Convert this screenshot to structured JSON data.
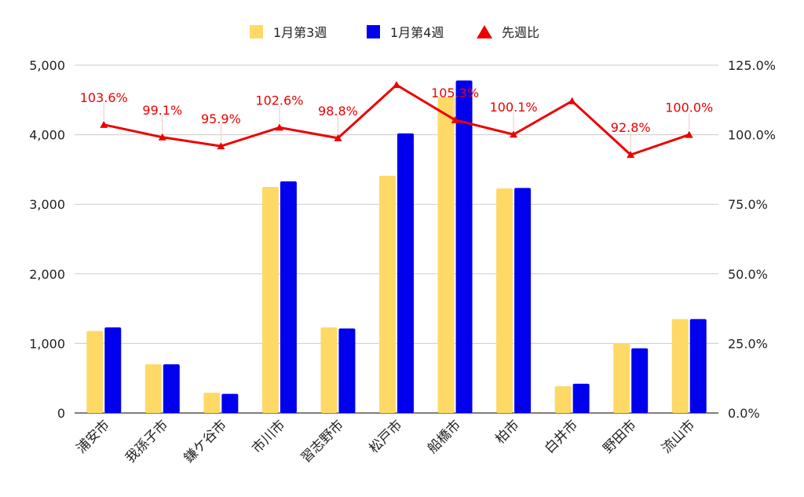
{
  "chart_data": {
    "type": "bar",
    "categories": [
      "浦安市",
      "我孫子市",
      "鎌ケ谷市",
      "市川市",
      "習志野市",
      "松戸市",
      "船橋市",
      "柏市",
      "白井市",
      "野田市",
      "流山市"
    ],
    "series": [
      {
        "name": "1月第3週",
        "type": "bar",
        "axis": "left",
        "color": "#FFD966",
        "values": [
          1180,
          700,
          290,
          3250,
          1230,
          3410,
          4540,
          3230,
          385,
          1005,
          1350
        ]
      },
      {
        "name": "1月第4週",
        "type": "bar",
        "axis": "left",
        "color": "#0000EE",
        "values": [
          1230,
          700,
          275,
          3330,
          1215,
          4020,
          4780,
          3235,
          420,
          930,
          1350
        ]
      },
      {
        "name": "先週比",
        "type": "line",
        "axis": "right",
        "color": "#EE0000",
        "marker": "triangle",
        "values": [
          103.6,
          99.1,
          95.9,
          102.6,
          98.8,
          117.9,
          105.3,
          100.1,
          112.1,
          92.8,
          100.0
        ],
        "labels": [
          "103.6%",
          "99.1%",
          "95.9%",
          "102.6%",
          "98.8%",
          "",
          "105.3%",
          "100.1%",
          "",
          "92.8%",
          "100.0%"
        ]
      }
    ],
    "y_left": {
      "min": 0,
      "max": 5000,
      "ticks": [
        "0",
        "1,000",
        "2,000",
        "3,000",
        "4,000",
        "5,000"
      ]
    },
    "y_right": {
      "min": 0,
      "max": 125,
      "ticks": [
        "0.0%",
        "25.0%",
        "50.0%",
        "75.0%",
        "100.0%",
        "125.0%"
      ]
    },
    "grid": true,
    "legend": "top"
  }
}
